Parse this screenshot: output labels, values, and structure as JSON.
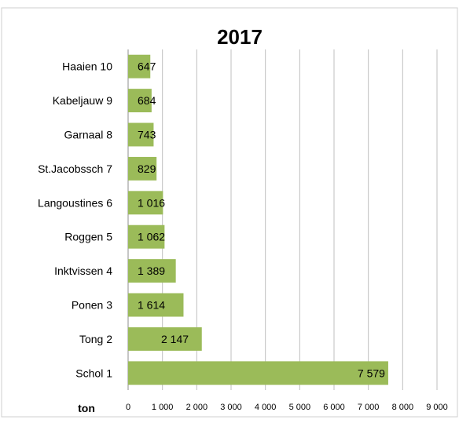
{
  "chart_data": {
    "type": "bar",
    "orientation": "horizontal",
    "title": "2017",
    "xlabel": "ton",
    "ylabel": "",
    "xlim": [
      0,
      9000
    ],
    "x_ticks": [
      0,
      1000,
      2000,
      3000,
      4000,
      5000,
      6000,
      7000,
      8000,
      9000
    ],
    "x_tick_labels": [
      "0",
      "1 000",
      "2 000",
      "3 000",
      "4 000",
      "5 000",
      "6 000",
      "7 000",
      "8 000",
      "9 000"
    ],
    "grid": true,
    "bar_color": "#9bbb59",
    "categories": [
      "Haaien 10",
      "Kabeljauw 9",
      "Garnaal 8",
      "St.Jacobssch 7",
      "Langoustines 6",
      "Roggen 5",
      "Inktvissen 4",
      "Ponen 3",
      "Tong 2",
      "Schol 1"
    ],
    "values": [
      647,
      684,
      743,
      829,
      1016,
      1062,
      1389,
      1614,
      2147,
      7579
    ],
    "data_labels": [
      "647",
      "684",
      "743",
      "829",
      "1 016",
      "1 062",
      "1 389",
      "1 614",
      "2 147",
      "7 579"
    ]
  }
}
